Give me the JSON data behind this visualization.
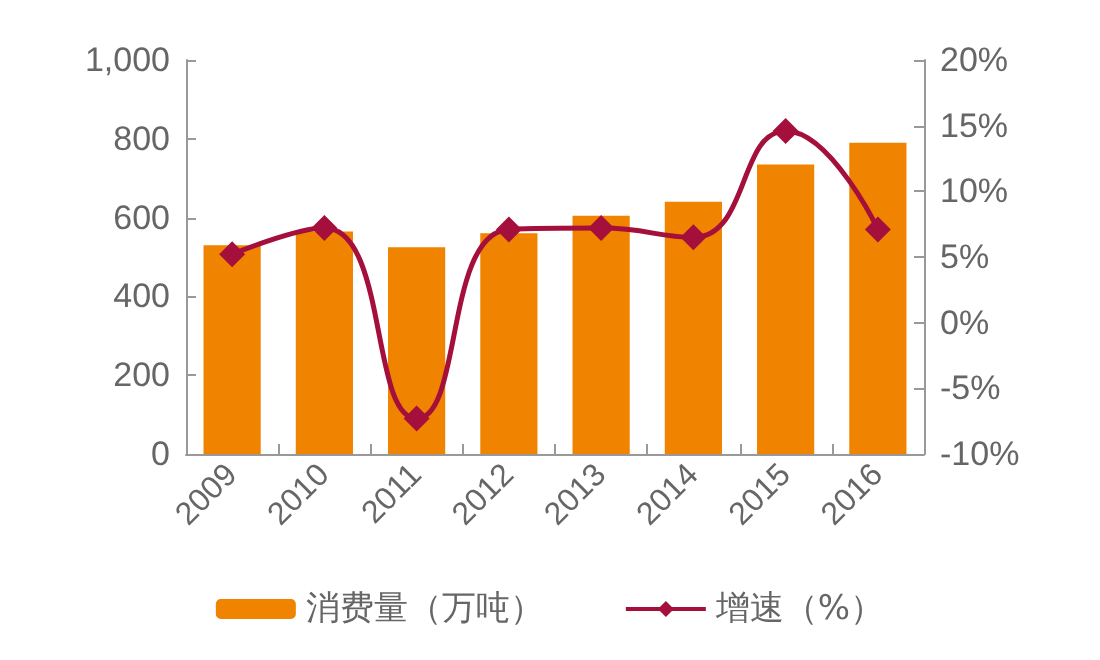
{
  "chart_data": {
    "type": "bar",
    "categories": [
      "2009",
      "2010",
      "2011",
      "2012",
      "2013",
      "2014",
      "2015",
      "2016"
    ],
    "series": [
      {
        "name": "消费量（万吨）",
        "color": "#f08300",
        "values": [
          530,
          565,
          525,
          560,
          605,
          640,
          735,
          790
        ]
      },
      {
        "name": "增速（%）",
        "type": "line",
        "axis": "y2",
        "color": "#a50f3c",
        "values": [
          5.2,
          7.2,
          -7.3,
          7.1,
          7.2,
          6.5,
          14.6,
          7.1
        ]
      }
    ],
    "ylim": [
      0,
      1000
    ],
    "yticks": [
      0,
      200,
      400,
      600,
      800,
      {
        "value": 1000,
        "label": "1,000"
      }
    ],
    "y2lim": [
      -10,
      20
    ],
    "y2ticks": [
      {
        "value": -10,
        "label": "-10%"
      },
      {
        "value": -5,
        "label": "-5%"
      },
      {
        "value": 0,
        "label": "0%"
      },
      {
        "value": 5,
        "label": "5%"
      },
      {
        "value": 10,
        "label": "10%"
      },
      {
        "value": 15,
        "label": "15%"
      },
      {
        "value": 20,
        "label": "20%"
      }
    ],
    "legend": "bottom",
    "marker": "diamond",
    "grid": false
  }
}
